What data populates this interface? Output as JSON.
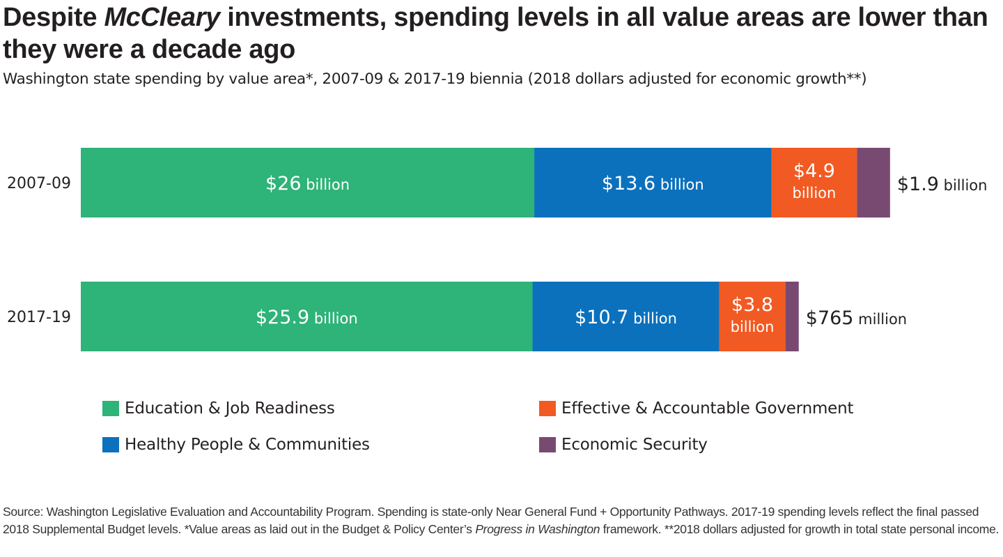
{
  "chart_data": {
    "type": "stacked-horizontal-bar",
    "title_parts": [
      "Despite ",
      "McCleary",
      " investments, spending levels in all value areas are lower than they were a decade ago"
    ],
    "subtitle": "Washington state spending by value area*, 2007-09 & 2017-19 biennia (2018 dollars adjusted for economic growth**)",
    "unit": "billion USD",
    "categories": [
      "2007-09",
      "2017-19"
    ],
    "series": [
      {
        "name": "Education & Job Readiness",
        "color": "#2eb378",
        "values": [
          26,
          25.9
        ],
        "labels": [
          {
            "num": "$26",
            "unit": "billion"
          },
          {
            "num": "$25.9",
            "unit": "billion"
          }
        ],
        "label_mode": "inline"
      },
      {
        "name": "Healthy People & Communities",
        "color": "#0b71bd",
        "values": [
          13.6,
          10.7
        ],
        "labels": [
          {
            "num": "$13.6",
            "unit": "billion"
          },
          {
            "num": "$10.7",
            "unit": "billion"
          }
        ],
        "label_mode": "inline"
      },
      {
        "name": "Effective & Accountable Government",
        "color": "#f15a22",
        "values": [
          4.9,
          3.8
        ],
        "labels": [
          {
            "num": "$4.9",
            "unit": "billion"
          },
          {
            "num": "$3.8",
            "unit": "billion"
          }
        ],
        "label_mode": "stacked"
      },
      {
        "name": "Economic Security",
        "color": "#784a72",
        "values": [
          1.9,
          0.765
        ],
        "labels": [
          {
            "num": "$1.9",
            "unit": "billion"
          },
          {
            "num": "$765",
            "unit": "million"
          }
        ],
        "label_mode": "outside"
      }
    ],
    "legend_placement": "bottom",
    "grid": false
  },
  "source": {
    "text1": "Source:  Washington Legislative Evaluation and Accountability Program. Spending is state-only Near General Fund + Opportunity Pathways. 2017-19 spending levels reflect the final passed 2018 Supplemental Budget levels. *Value areas as laid out in the Budget & Policy Center’s ",
    "italic": "Progress in Washington",
    "text2": " framework. **2018 dollars adjusted for growth in total state personal income."
  }
}
